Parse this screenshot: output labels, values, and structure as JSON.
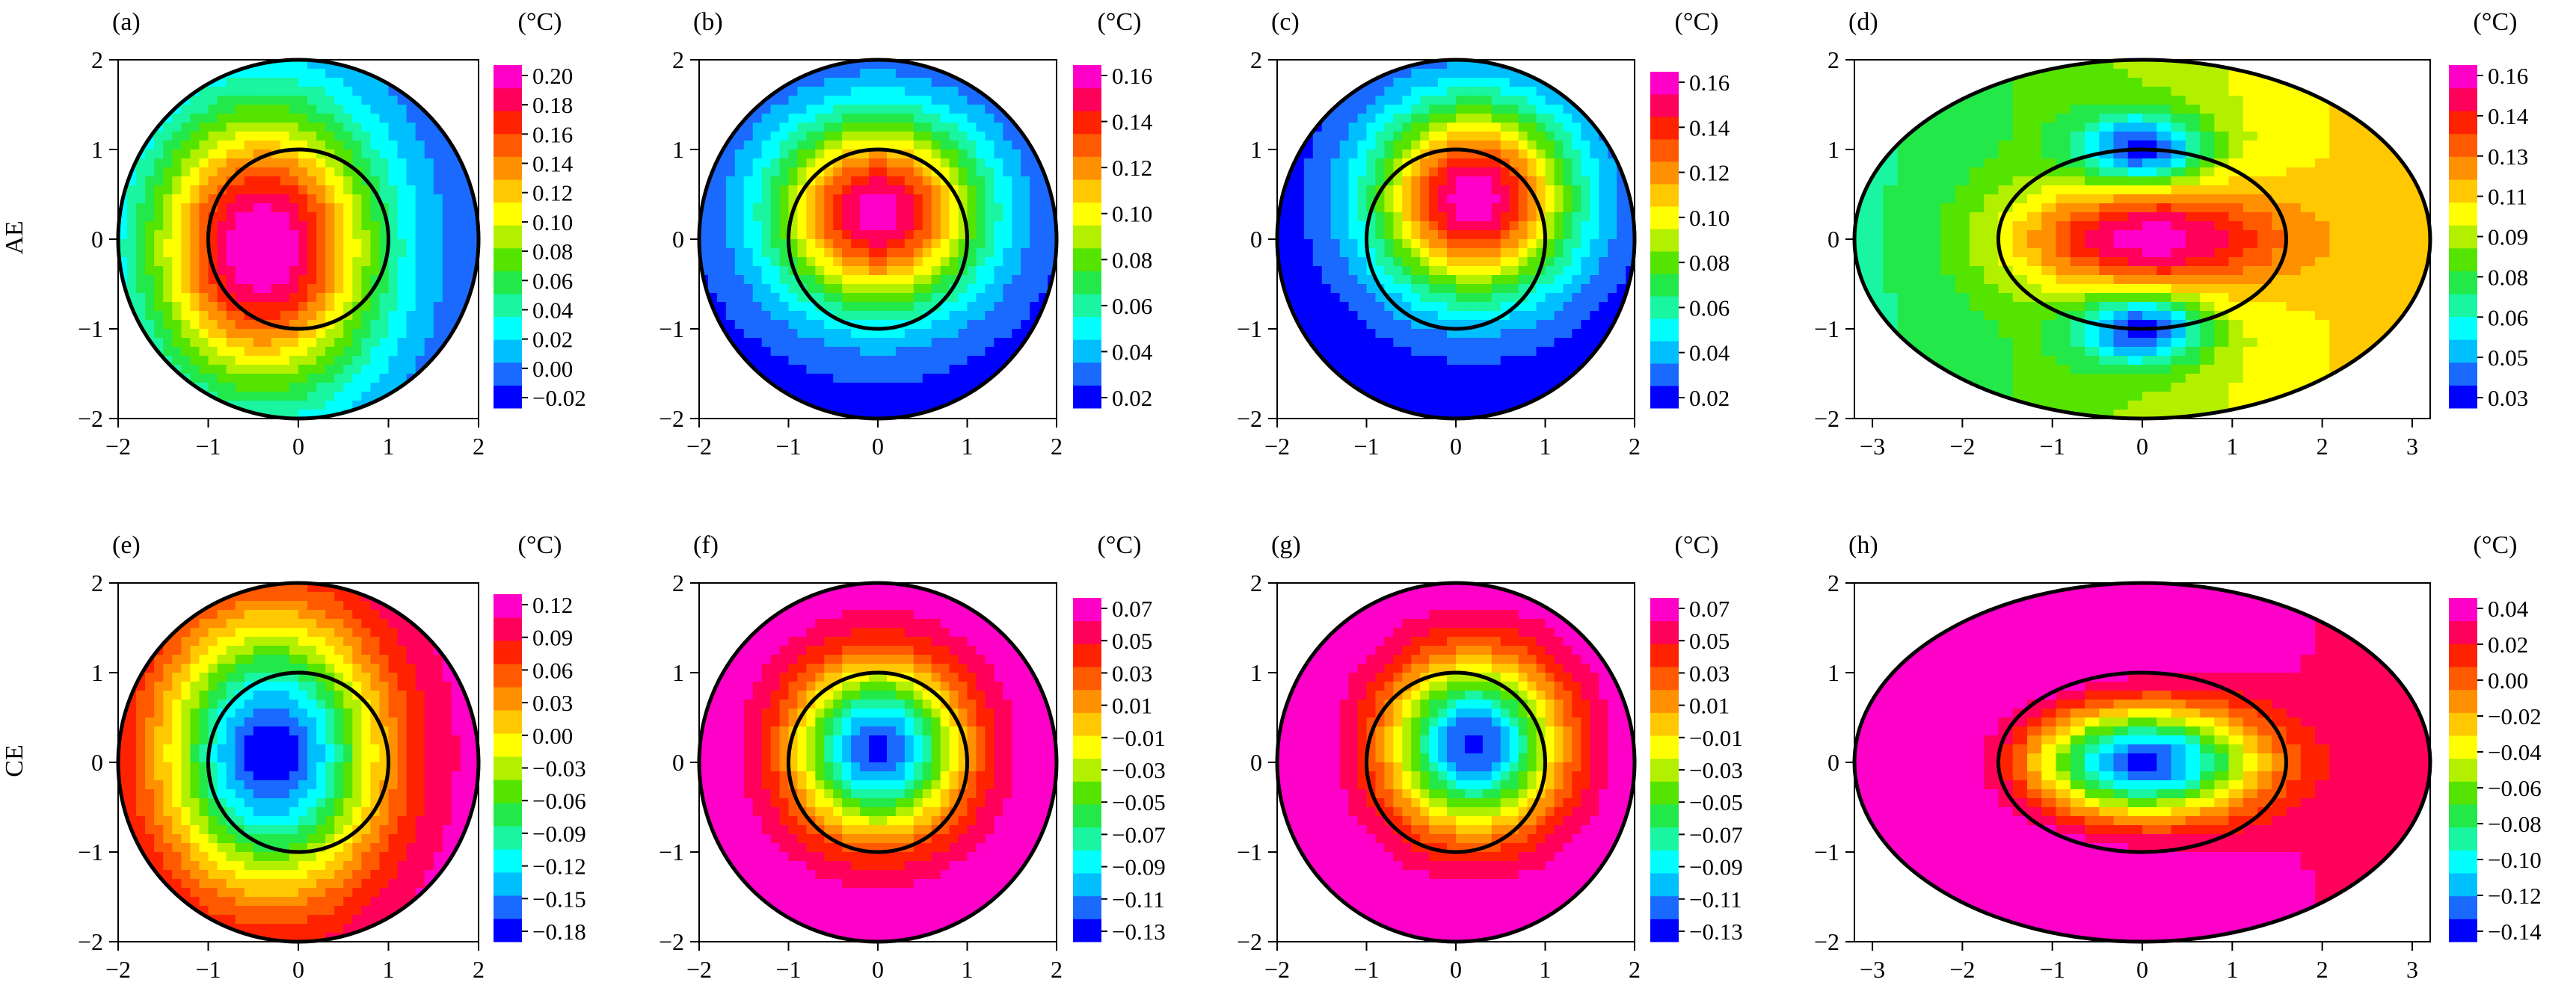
{
  "row_labels": [
    "AE",
    "CE"
  ],
  "colors": {
    "palette": [
      "#0000ff",
      "#1a6aff",
      "#00bfff",
      "#00ffff",
      "#19f5a0",
      "#22e84a",
      "#55e400",
      "#b2f000",
      "#ffff00",
      "#ffc800",
      "#ff9000",
      "#ff5a00",
      "#ff2200",
      "#ff005a",
      "#ff00c8"
    ],
    "outline": "#000000"
  },
  "chart_data": [
    {
      "type": "heatmap",
      "panel": "(a)",
      "row": "AE",
      "domain": "circle",
      "xlim": [
        -2,
        2
      ],
      "ylim": [
        -2,
        2
      ],
      "xticks": [
        "−2",
        "−1",
        "0",
        "1",
        "2"
      ],
      "yticks": [
        "2",
        "1",
        "0",
        "−1",
        "−2"
      ],
      "colorbar_unit": "(°C)",
      "colorbar_ticks": [
        "0.20",
        "0.18",
        "0.16",
        "0.14",
        "0.12",
        "0.10",
        "0.08",
        "0.06",
        "0.04",
        "0.02",
        "0.00",
        "−0.02"
      ],
      "vmin": -0.03,
      "vmax": 0.21,
      "field": {
        "kind": "gauss",
        "base": -0.015,
        "amp": 0.23,
        "cx": -0.4,
        "cy": -0.1,
        "sx": 1.25,
        "sy": 1.55
      }
    },
    {
      "type": "heatmap",
      "panel": "(b)",
      "row": "AE",
      "domain": "circle",
      "xlim": [
        -2,
        2
      ],
      "ylim": [
        -2,
        2
      ],
      "xticks": [
        "−2",
        "−1",
        "0",
        "1",
        "2"
      ],
      "yticks": [
        "2",
        "1",
        "0",
        "−1",
        "−2"
      ],
      "colorbar_unit": "(°C)",
      "colorbar_ticks": [
        "0.16",
        "0.14",
        "0.12",
        "0.10",
        "0.08",
        "0.06",
        "0.04",
        "0.02"
      ],
      "vmin": 0.015,
      "vmax": 0.175,
      "field": {
        "kind": "gauss",
        "base": 0.02,
        "amp": 0.15,
        "cx": 0.0,
        "cy": 0.3,
        "sx": 1.15,
        "sy": 1.05
      }
    },
    {
      "type": "heatmap",
      "panel": "(c)",
      "row": "AE",
      "domain": "circle",
      "xlim": [
        -2,
        2
      ],
      "ylim": [
        -2,
        2
      ],
      "xticks": [
        "−2",
        "−1",
        "0",
        "1",
        "2"
      ],
      "yticks": [
        "2",
        "1",
        "0",
        "−1",
        "−2"
      ],
      "colorbar_unit": "(°C)",
      "colorbar_ticks": [
        "0.16",
        "0.14",
        "0.12",
        "0.10",
        "0.08",
        "0.06",
        "0.04",
        "0.02"
      ],
      "vmin": 0.015,
      "vmax": 0.18,
      "field": {
        "kind": "gauss",
        "base": 0.018,
        "amp": 0.16,
        "cx": 0.2,
        "cy": 0.45,
        "sx": 1.1,
        "sy": 1.05
      }
    },
    {
      "type": "heatmap",
      "panel": "(d)",
      "row": "AE",
      "domain": "ellipse",
      "xlim": [
        -3.2,
        3.2
      ],
      "ylim": [
        -2,
        2
      ],
      "xticks": [
        "−3",
        "−2",
        "−1",
        "0",
        "1",
        "2",
        "3"
      ],
      "yticks": [
        "2",
        "1",
        "0",
        "−1",
        "−2"
      ],
      "colorbar_unit": "(°C)",
      "colorbar_ticks": [
        "0.16",
        "0.14",
        "0.13",
        "0.11",
        "0.09",
        "0.08",
        "0.06",
        "0.05",
        "0.03"
      ],
      "vmin": 0.025,
      "vmax": 0.17,
      "field": {
        "kind": "ellipse_blob",
        "base": 0.095,
        "amp": 0.07,
        "sx": 1.5,
        "sy": 0.6,
        "dip": 0.07,
        "dx": 0.7,
        "dy0": 1.0,
        "dys": 0.4,
        "xtrend": 0.008
      }
    },
    {
      "type": "heatmap",
      "panel": "(e)",
      "row": "CE",
      "domain": "circle",
      "xlim": [
        -2,
        2
      ],
      "ylim": [
        -2,
        2
      ],
      "xticks": [
        "−2",
        "−1",
        "0",
        "1",
        "2"
      ],
      "yticks": [
        "2",
        "1",
        "0",
        "−1",
        "−2"
      ],
      "colorbar_unit": "(°C)",
      "colorbar_ticks": [
        "0.12",
        "0.09",
        "0.06",
        "0.03",
        "0.00",
        "−0.03",
        "−0.06",
        "−0.09",
        "−0.12",
        "−0.15",
        "−0.18"
      ],
      "vmin": -0.195,
      "vmax": 0.135,
      "field": {
        "kind": "gauss",
        "base": 0.13,
        "amp": -0.32,
        "cx": -0.3,
        "cy": 0.1,
        "sx": 1.2,
        "sy": 1.5
      }
    },
    {
      "type": "heatmap",
      "panel": "(f)",
      "row": "CE",
      "domain": "circle",
      "xlim": [
        -2,
        2
      ],
      "ylim": [
        -2,
        2
      ],
      "xticks": [
        "−2",
        "−1",
        "0",
        "1",
        "2"
      ],
      "yticks": [
        "2",
        "1",
        "0",
        "−1",
        "−2"
      ],
      "colorbar_unit": "(°C)",
      "colorbar_ticks": [
        "0.07",
        "0.05",
        "0.03",
        "0.01",
        "−0.01",
        "−0.03",
        "−0.05",
        "−0.07",
        "−0.09",
        "−0.11",
        "−0.13"
      ],
      "vmin": -0.14,
      "vmax": 0.08,
      "field": {
        "kind": "gauss",
        "base": 0.08,
        "amp": -0.21,
        "cx": 0.0,
        "cy": 0.15,
        "sx": 0.95,
        "sy": 0.95
      }
    },
    {
      "type": "heatmap",
      "panel": "(g)",
      "row": "CE",
      "domain": "circle",
      "xlim": [
        -2,
        2
      ],
      "ylim": [
        -2,
        2
      ],
      "xticks": [
        "−2",
        "−1",
        "0",
        "1",
        "2"
      ],
      "yticks": [
        "2",
        "1",
        "0",
        "−1",
        "−2"
      ],
      "colorbar_unit": "(°C)",
      "colorbar_ticks": [
        "0.07",
        "0.05",
        "0.03",
        "0.01",
        "−0.01",
        "−0.03",
        "−0.05",
        "−0.07",
        "−0.09",
        "−0.11",
        "−0.13"
      ],
      "vmin": -0.14,
      "vmax": 0.08,
      "field": {
        "kind": "gauss",
        "base": 0.08,
        "amp": -0.21,
        "cx": 0.2,
        "cy": 0.2,
        "sx": 0.95,
        "sy": 0.95
      }
    },
    {
      "type": "heatmap",
      "panel": "(h)",
      "row": "CE",
      "domain": "ellipse",
      "xlim": [
        -3.2,
        3.2
      ],
      "ylim": [
        -2,
        2
      ],
      "xticks": [
        "−3",
        "−2",
        "−1",
        "0",
        "1",
        "2",
        "3"
      ],
      "yticks": [
        "2",
        "1",
        "0",
        "−1",
        "−2"
      ],
      "colorbar_unit": "(°C)",
      "colorbar_ticks": [
        "0.04",
        "0.02",
        "0.00",
        "−0.02",
        "−0.04",
        "−0.06",
        "−0.08",
        "−0.10",
        "−0.12",
        "−0.14"
      ],
      "vmin": -0.15,
      "vmax": 0.05,
      "field": {
        "kind": "gauss",
        "base": 0.05,
        "amp": -0.19,
        "cx": 0.0,
        "cy": 0.0,
        "sx": 1.25,
        "sy": 0.6,
        "xtrend": -0.007
      }
    }
  ]
}
